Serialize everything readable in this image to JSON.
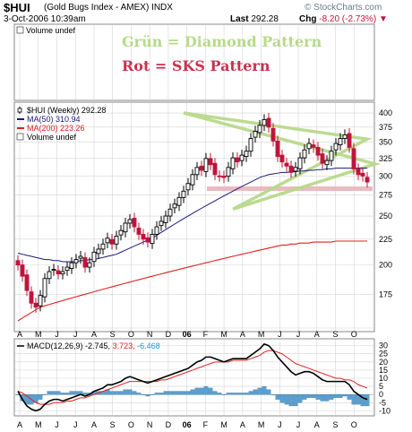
{
  "header": {
    "symbol": "$HUI",
    "name": "(Gold Bugs Index - AMEX)  INDX",
    "date": "3-Oct-2006 10:39am",
    "last_label": "Last",
    "last_value": "292.28",
    "chg_label": "Chg",
    "chg_value": "-8.20 (-2.73%)",
    "logo": "© StockCharts.com"
  },
  "colors": {
    "up": "#000000",
    "down": "#c0153a",
    "ma50": "#1a1a7a",
    "ma200": "#e02020",
    "diamond": "#b7d98a",
    "sks": "#e8b4b8",
    "volume_bar": "#5aa0d0",
    "macd_line": "#000000",
    "signal_line": "#e02020",
    "grid": "#d4d4d4"
  },
  "chart_data": [
    {
      "type": "line",
      "panel": "top",
      "label": "Volume undef",
      "annotations": [
        "Grün = Diamond Pattern",
        "Rot   = SKS Pattern"
      ]
    },
    {
      "type": "line",
      "panel": "price",
      "legend": [
        {
          "label": "$HUI (Weekly)  292.28",
          "kind": "candle"
        },
        {
          "label": "MA(50)  310.94",
          "kind": "ma50"
        },
        {
          "label": "MA(200)  223.26",
          "kind": "ma200"
        },
        {
          "label": "Volume undef",
          "kind": "box"
        }
      ],
      "y_ticks": [
        150,
        175,
        200,
        225,
        250,
        275,
        300,
        325,
        350,
        375,
        400
      ],
      "y_labels": [
        "175",
        "200",
        "225",
        "250",
        "275",
        "300",
        "325",
        "350",
        "375",
        "400"
      ],
      "ylim": [
        150,
        410
      ],
      "y_scale": "log",
      "x_months": [
        "A",
        "M",
        "J",
        "J",
        "A",
        "S",
        "O",
        "N",
        "D",
        "06",
        "F",
        "M",
        "A",
        "M",
        "J",
        "J",
        "A",
        "S",
        "O"
      ],
      "price_close": [
        200,
        190,
        178,
        168,
        165,
        174,
        188,
        194,
        196,
        192,
        194,
        198,
        202,
        205,
        208,
        198,
        202,
        212,
        215,
        220,
        226,
        220,
        228,
        234,
        242,
        246,
        238,
        230,
        225,
        222,
        230,
        238,
        244,
        250,
        258,
        264,
        272,
        280,
        290,
        302,
        312,
        308,
        325,
        316,
        302,
        300,
        298,
        312,
        326,
        320,
        330,
        336,
        356,
        368,
        378,
        388,
        375,
        352,
        328,
        320,
        314,
        305,
        312,
        326,
        338,
        348,
        342,
        330,
        318,
        322,
        336,
        348,
        356,
        362,
        342,
        310,
        302,
        300,
        292
      ],
      "ma50": [
        211,
        210,
        209,
        208,
        207,
        206,
        205,
        205,
        204,
        204,
        203,
        203,
        203,
        203,
        204,
        204,
        205,
        205,
        206,
        207,
        208,
        209,
        210,
        212,
        214,
        216,
        218,
        220,
        222,
        224,
        226,
        229,
        232,
        235,
        238,
        241,
        244,
        247,
        250,
        253,
        256,
        259,
        262,
        265,
        268,
        271,
        274,
        277,
        280,
        283,
        286,
        289,
        292,
        295,
        298,
        300,
        302,
        303,
        304,
        305,
        305,
        306,
        306,
        307,
        307,
        308,
        308,
        309,
        309,
        310,
        310,
        311,
        311,
        311,
        311,
        311,
        311,
        311,
        311
      ],
      "ma200": [
        155,
        157,
        159,
        161,
        163,
        165,
        166,
        167,
        168,
        169,
        170,
        171,
        172,
        173,
        174,
        175,
        176,
        177,
        178,
        179,
        180,
        181,
        182,
        183,
        184,
        185,
        186,
        187,
        188,
        189,
        190,
        191,
        192,
        193,
        194,
        195,
        196,
        197,
        198,
        199,
        200,
        201,
        202,
        203,
        204,
        205,
        206,
        207,
        208,
        209,
        210,
        211,
        212,
        213,
        214,
        215,
        216,
        217,
        218,
        219,
        219,
        220,
        220,
        221,
        221,
        221,
        222,
        222,
        222,
        222,
        222,
        223,
        223,
        223,
        223,
        223,
        223,
        223,
        223
      ],
      "diamond": {
        "left": [
          -9,
          317
        ],
        "top": [
          37,
          400
        ],
        "right": [
          78,
          355
        ],
        "bottom": [
          48,
          258
        ]
      },
      "sks_neckline": 295
    },
    {
      "type": "line",
      "panel": "macd",
      "legend": "MACD(12,26,9)  -2.745,  3.723,  -6.468",
      "legend_values": [
        "-2.745",
        "3.723",
        "-6.468"
      ],
      "y_ticks": [
        -10,
        -5,
        0,
        5,
        10,
        15,
        20,
        25,
        30
      ],
      "y_labels": [
        "-10",
        "-5",
        "0",
        "5",
        "10",
        "15",
        "20",
        "25",
        "30"
      ],
      "ylim": [
        -12,
        32
      ],
      "macd": [
        2,
        -3,
        -7,
        -9,
        -10,
        -9,
        -6,
        -4,
        -3,
        -3,
        -4,
        -3,
        -2,
        -1,
        0,
        -1,
        0,
        2,
        3,
        4,
        6,
        6,
        7,
        8,
        10,
        11,
        10,
        9,
        8,
        7,
        8,
        9,
        10,
        11,
        12,
        13,
        14,
        15,
        16,
        18,
        20,
        21,
        23,
        23,
        22,
        21,
        20,
        21,
        22,
        22,
        22,
        22,
        24,
        26,
        28,
        31,
        30,
        27,
        23,
        20,
        17,
        14,
        12,
        13,
        14,
        14,
        13,
        11,
        9,
        8,
        8,
        8,
        8,
        8,
        6,
        2,
        0,
        -2,
        -3
      ],
      "signal": [
        2,
        1,
        -1,
        -3,
        -5,
        -6,
        -6,
        -6,
        -5,
        -5,
        -5,
        -4,
        -4,
        -3,
        -2,
        -2,
        -1,
        0,
        1,
        2,
        3,
        4,
        5,
        6,
        7,
        8,
        8,
        8,
        8,
        8,
        8,
        8,
        9,
        9,
        10,
        11,
        12,
        13,
        14,
        15,
        16,
        17,
        18,
        19,
        20,
        20,
        20,
        20,
        21,
        21,
        21,
        21,
        22,
        23,
        24,
        26,
        27,
        27,
        26,
        25,
        23,
        21,
        19,
        18,
        17,
        16,
        15,
        14,
        13,
        12,
        11,
        10,
        10,
        9,
        9,
        8,
        6,
        5,
        4
      ]
    }
  ]
}
